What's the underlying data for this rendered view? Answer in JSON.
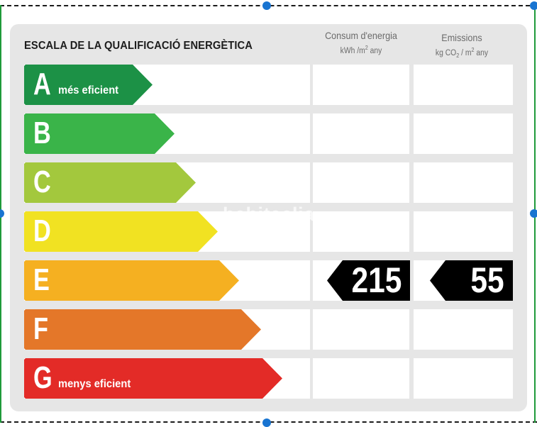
{
  "title": "ESCALA DE LA QUALIFICACIÓ ENERGÈTICA",
  "columns": [
    {
      "name": "Consum d'energia",
      "unit_prefix": "kWh /m",
      "unit_sup": "2",
      "unit_suffix": " any"
    },
    {
      "name": "Emissions",
      "unit_prefix": "kg CO",
      "unit_sub": "2",
      "unit_mid": " / m",
      "unit_sup": "2",
      "unit_suffix": " any"
    }
  ],
  "watermark": "habitaclia",
  "chart_data": {
    "type": "table",
    "title": "ESCALA DE LA QUALIFICACIÓ ENERGÈTICA",
    "ratings": [
      {
        "letter": "A",
        "note": "més eficient",
        "color": "#1c9146"
      },
      {
        "letter": "B",
        "note": "",
        "color": "#3ab449"
      },
      {
        "letter": "C",
        "note": "",
        "color": "#a3c83d"
      },
      {
        "letter": "D",
        "note": "",
        "color": "#f1e222"
      },
      {
        "letter": "E",
        "note": "",
        "color": "#f5b021"
      },
      {
        "letter": "F",
        "note": "",
        "color": "#e47729"
      },
      {
        "letter": "G",
        "note": "menys eficient",
        "color": "#e32b27"
      }
    ],
    "current": {
      "letter": "E",
      "energy_consumption": "215",
      "emissions": "55"
    }
  },
  "colors": {
    "panel": "#e6e6e6",
    "badge": "#000000",
    "handle": "#1874d1"
  }
}
